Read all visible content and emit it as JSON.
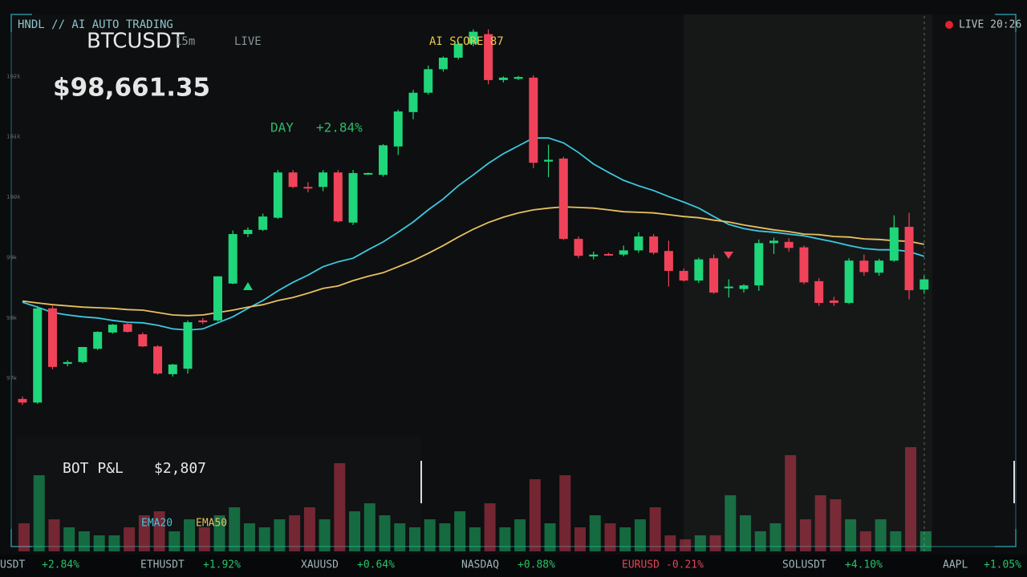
{
  "header": {
    "brand": "HNDL // AI AUTO TRADING",
    "symbol": "BTCUSDT",
    "interval": "15m",
    "mode": "LIVE",
    "ai_score": "AI SCORE 87",
    "price": "$98,661.35",
    "day_label": "DAY",
    "day_change": "+2.84%",
    "live_clock": "LIVE 20:26"
  },
  "bot_pnl": {
    "label": "BOT P&L",
    "value": "$2,807"
  },
  "ticker": [
    {
      "symbol": "USDT",
      "change": "+2.84%"
    },
    {
      "symbol": "ETHUSDT",
      "change": "+1.92%"
    },
    {
      "symbol": "XAUUSD",
      "change": "+0.64%"
    },
    {
      "symbol": "NASDAQ",
      "change": "+0.88%"
    },
    {
      "symbol": "EURUSD",
      "change": "-0.21%"
    },
    {
      "symbol": "SOLUSDT",
      "change": "+4.10%"
    },
    {
      "symbol": "AAPL",
      "change": "+1.05%"
    }
  ],
  "chart_data": {
    "type": "candlestick",
    "open": [
      96660,
      96600,
      98160,
      97240,
      97270,
      97490,
      97760,
      97900,
      97730,
      97530,
      97070,
      97160,
      97960,
      97960,
      98570,
      99390,
      99460,
      99660,
      100410,
      100170,
      100170,
      100410,
      99580,
      100390,
      100370,
      100840,
      101410,
      101730,
      102120,
      102310,
      102540,
      102700,
      101940,
      101960,
      101980,
      100590,
      100640,
      99310,
      99020,
      99060,
      99050,
      99120,
      99350,
      99110,
      98780,
      98620,
      98990,
      98500,
      98480,
      98540,
      99240,
      99260,
      99170,
      98610,
      98290,
      98250,
      98950,
      98750,
      98950,
      99510,
      98470
    ],
    "high": [
      96700,
      98200,
      98200,
      97300,
      97520,
      97780,
      97900,
      97940,
      97760,
      97550,
      97240,
      97960,
      98000,
      98690,
      99450,
      99500,
      99730,
      100450,
      100450,
      100250,
      100450,
      100450,
      100450,
      100410,
      100880,
      101450,
      101780,
      102180,
      102330,
      102580,
      102780,
      102780,
      102000,
      102010,
      102020,
      100870,
      100670,
      99350,
      99100,
      99080,
      99200,
      99420,
      99390,
      99280,
      98820,
      99000,
      99050,
      98640,
      98560,
      99300,
      99330,
      99320,
      99200,
      98660,
      98350,
      98990,
      99050,
      98980,
      99700,
      99740,
      98700
    ],
    "low": [
      96560,
      96580,
      97150,
      97200,
      97250,
      97470,
      97740,
      97760,
      97520,
      97060,
      97030,
      97080,
      97900,
      97940,
      98560,
      99340,
      99440,
      99640,
      100150,
      100080,
      100100,
      99580,
      99540,
      100370,
      100340,
      100700,
      101290,
      101700,
      102080,
      102280,
      102500,
      101870,
      101900,
      101940,
      100480,
      100330,
      99290,
      98990,
      98970,
      99030,
      99020,
      99080,
      99050,
      98520,
      98600,
      98580,
      98400,
      98340,
      98420,
      98450,
      99060,
      99100,
      98560,
      98200,
      98200,
      98230,
      98700,
      98700,
      98930,
      98310,
      98400
    ],
    "close": [
      96600,
      98160,
      97190,
      97270,
      97520,
      97770,
      97890,
      97770,
      97530,
      97080,
      97230,
      97930,
      97930,
      98690,
      99390,
      99460,
      99680,
      100410,
      100170,
      100160,
      100410,
      99600,
      100400,
      100400,
      100860,
      101420,
      101730,
      102120,
      102310,
      102540,
      102740,
      101940,
      101980,
      101990,
      100570,
      100620,
      99310,
      99030,
      99050,
      99040,
      99120,
      99350,
      99080,
      98780,
      98620,
      98970,
      98420,
      98520,
      98540,
      99240,
      99280,
      99160,
      98590,
      98250,
      98250,
      98950,
      98760,
      98950,
      99500,
      98460,
      98640
    ],
    "volume": [
      35,
      95,
      40,
      30,
      25,
      20,
      20,
      30,
      45,
      50,
      25,
      40,
      30,
      45,
      55,
      35,
      30,
      40,
      45,
      55,
      40,
      110,
      50,
      60,
      45,
      35,
      30,
      40,
      35,
      50,
      30,
      60,
      30,
      40,
      90,
      35,
      95,
      30,
      45,
      35,
      30,
      40,
      55,
      20,
      15,
      20,
      20,
      70,
      45,
      25,
      35,
      120,
      40,
      70,
      65,
      40,
      25,
      40,
      25,
      130,
      25
    ],
    "up_color": "#1fd67a",
    "down_color": "#f0435a",
    "lines": [
      {
        "name": "EMA20",
        "color": "#3cc8e0",
        "values": [
          98260,
          98180,
          98090,
          98050,
          98020,
          98000,
          97960,
          97930,
          97920,
          97880,
          97820,
          97800,
          97820,
          97920,
          98020,
          98160,
          98290,
          98450,
          98590,
          98710,
          98850,
          98930,
          98990,
          99130,
          99260,
          99420,
          99590,
          99790,
          99970,
          100190,
          100370,
          100560,
          100720,
          100850,
          100980,
          100980,
          100900,
          100740,
          100550,
          100410,
          100280,
          100190,
          100110,
          100010,
          99920,
          99820,
          99680,
          99550,
          99480,
          99440,
          99420,
          99390,
          99360,
          99310,
          99260,
          99200,
          99150,
          99130,
          99130,
          99100,
          99020
        ]
      },
      {
        "name": "EMA50",
        "color": "#e8c060",
        "values": [
          98280,
          98250,
          98220,
          98200,
          98180,
          98170,
          98160,
          98140,
          98130,
          98090,
          98050,
          98040,
          98050,
          98090,
          98130,
          98180,
          98220,
          98290,
          98340,
          98410,
          98490,
          98530,
          98620,
          98690,
          98750,
          98850,
          98950,
          99070,
          99200,
          99340,
          99470,
          99580,
          99670,
          99740,
          99790,
          99820,
          99840,
          99830,
          99820,
          99790,
          99760,
          99750,
          99740,
          99710,
          99680,
          99660,
          99620,
          99590,
          99540,
          99500,
          99460,
          99430,
          99390,
          99380,
          99350,
          99340,
          99310,
          99300,
          99280,
          99270,
          99220
        ]
      }
    ],
    "ylim": [
      96100,
      103000
    ],
    "yticks": [
      {
        "value": 97000,
        "label": "97k"
      },
      {
        "value": 98000,
        "label": "98k"
      },
      {
        "value": 99000,
        "label": "99k"
      },
      {
        "value": 100000,
        "label": "100k"
      },
      {
        "value": 101000,
        "label": "101k"
      },
      {
        "value": 102000,
        "label": "102k"
      }
    ]
  }
}
